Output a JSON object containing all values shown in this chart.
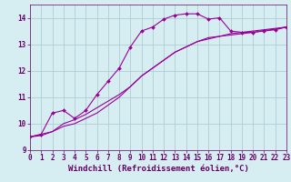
{
  "title": "",
  "xlabel": "Windchill (Refroidissement éolien,°C)",
  "ylabel": "",
  "bg_color": "#d6eef2",
  "grid_color": "#b0cdd4",
  "line_color": "#990099",
  "xlim": [
    0,
    23
  ],
  "ylim": [
    9,
    14.5
  ],
  "yticks": [
    9,
    10,
    11,
    12,
    13,
    14
  ],
  "xticks": [
    0,
    1,
    2,
    3,
    4,
    5,
    6,
    7,
    8,
    9,
    10,
    11,
    12,
    13,
    14,
    15,
    16,
    17,
    18,
    19,
    20,
    21,
    22,
    23
  ],
  "curve1_x": [
    0,
    1,
    2,
    3,
    4,
    5,
    6,
    7,
    8,
    9,
    10,
    11,
    12,
    13,
    14,
    15,
    16,
    17,
    18,
    19,
    20,
    21,
    22,
    23
  ],
  "curve1_y": [
    9.5,
    9.6,
    10.4,
    10.5,
    10.2,
    10.5,
    11.1,
    11.6,
    12.1,
    12.9,
    13.5,
    13.65,
    13.95,
    14.1,
    14.15,
    14.15,
    13.95,
    14.0,
    13.5,
    13.45,
    13.45,
    13.5,
    13.55,
    13.65
  ],
  "curve2_x": [
    0,
    1,
    2,
    3,
    4,
    5,
    6,
    7,
    8,
    9,
    10,
    11,
    12,
    13,
    14,
    15,
    16,
    17,
    18,
    19,
    20,
    21,
    22,
    23
  ],
  "curve2_y": [
    9.5,
    9.6,
    9.7,
    9.9,
    10.0,
    10.2,
    10.4,
    10.7,
    11.0,
    11.4,
    11.8,
    12.1,
    12.4,
    12.7,
    12.9,
    13.1,
    13.2,
    13.3,
    13.4,
    13.45,
    13.5,
    13.55,
    13.6,
    13.65
  ],
  "curve3_x": [
    0,
    1,
    2,
    3,
    4,
    5,
    6,
    7,
    8,
    9,
    10,
    11,
    12,
    13,
    14,
    15,
    16,
    17,
    18,
    19,
    20,
    21,
    22,
    23
  ],
  "curve3_y": [
    9.5,
    9.55,
    9.7,
    10.0,
    10.15,
    10.35,
    10.6,
    10.85,
    11.1,
    11.4,
    11.8,
    12.1,
    12.4,
    12.7,
    12.9,
    13.1,
    13.25,
    13.3,
    13.35,
    13.4,
    13.45,
    13.52,
    13.57,
    13.65
  ],
  "marker": "D",
  "markersize": 2.0,
  "linewidth": 0.8,
  "font_color": "#660066",
  "tick_fontsize": 5.5,
  "label_fontsize": 6.5
}
